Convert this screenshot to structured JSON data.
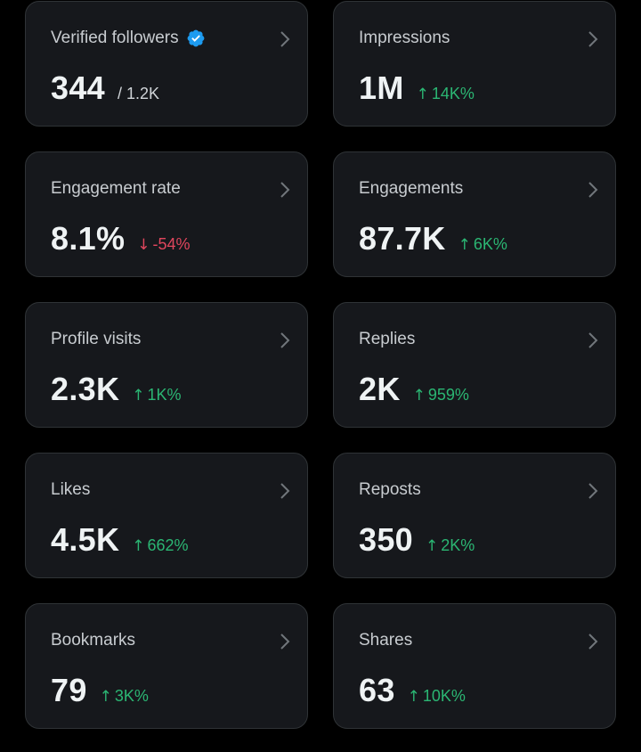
{
  "colors": {
    "background": "#000000",
    "card": "#16181c",
    "border": "#2f3336",
    "positive": "#2bb673",
    "negative": "#e0465d",
    "verified": "#1d9bf0"
  },
  "cards": [
    {
      "title": "Verified followers",
      "value": "344",
      "secondary": "/ 1.2K",
      "verified_icon": "verified-badge-icon"
    },
    {
      "title": "Impressions",
      "value": "1M",
      "change": "14K%",
      "direction": "up"
    },
    {
      "title": "Engagement rate",
      "value": "8.1%",
      "change": "-54%",
      "direction": "down"
    },
    {
      "title": "Engagements",
      "value": "87.7K",
      "change": "6K%",
      "direction": "up"
    },
    {
      "title": "Profile visits",
      "value": "2.3K",
      "change": "1K%",
      "direction": "up"
    },
    {
      "title": "Replies",
      "value": "2K",
      "change": "959%",
      "direction": "up"
    },
    {
      "title": "Likes",
      "value": "4.5K",
      "change": "662%",
      "direction": "up"
    },
    {
      "title": "Reposts",
      "value": "350",
      "change": "2K%",
      "direction": "up"
    },
    {
      "title": "Bookmarks",
      "value": "79",
      "change": "3K%",
      "direction": "up"
    },
    {
      "title": "Shares",
      "value": "63",
      "change": "10K%",
      "direction": "up"
    }
  ],
  "icons": {
    "chevron": "chevron-right-icon",
    "up_arrow": "↑",
    "down_arrow": "↓"
  }
}
